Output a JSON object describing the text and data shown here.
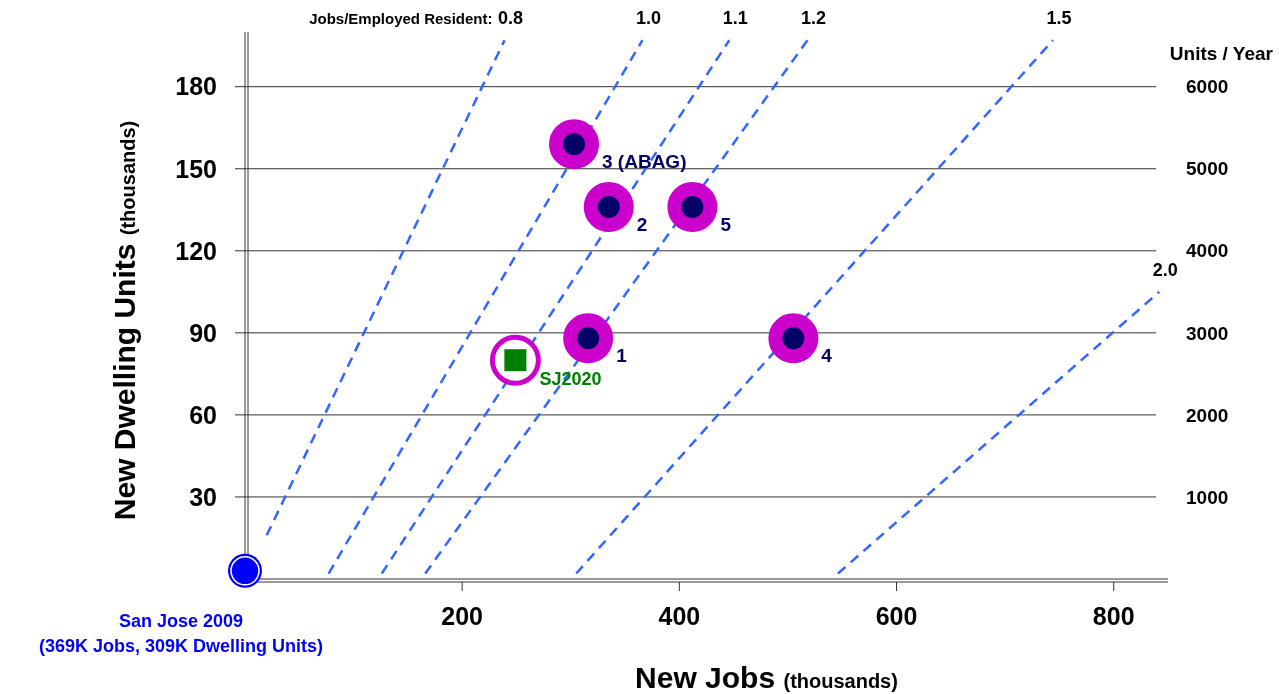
{
  "chart_data": {
    "type": "scatter",
    "xlabel": "New Jobs $_{(thousands)}$",
    "ylabel": "New Dwelling Units $_{(thousands)}$",
    "y2label": "Units / Year",
    "xlim": [
      0,
      850
    ],
    "xticks": [
      200,
      400,
      600,
      800
    ],
    "ylim": [
      0,
      200
    ],
    "yticks": [
      30,
      60,
      90,
      120,
      150,
      180
    ],
    "y2lim": [
      0,
      6667
    ],
    "y2ticks": [
      1000,
      2000,
      3000,
      4000,
      5000,
      6000
    ],
    "grid": "y",
    "annotations": [
      "Jobs/Employed Resident:",
      {
        "text": "3 (ABAG)",
        "x": 303,
        "y": 159
      },
      {
        "text": "2",
        "x": 335,
        "y": 136
      },
      {
        "text": "5",
        "x": 412,
        "y": 136
      },
      {
        "text": "1",
        "x": 316,
        "y": 88
      },
      {
        "text": "4",
        "x": 505,
        "y": 88
      }
    ],
    "series": [
      {
        "name": "0.8",
        "type": "line",
        "color": "#3366ff",
        "line_style": "dashed",
        "x": [
          20,
          239
        ],
        "values": [
          16,
          197
        ]
      },
      {
        "name": "1.0",
        "type": "line",
        "color": "#3366ff",
        "line_style": "dashed",
        "x": [
          77,
          366
        ],
        "values": [
          2,
          197
        ]
      },
      {
        "name": "1.1",
        "type": "line",
        "color": "#3366ff",
        "line_style": "dashed",
        "x": [
          126,
          446
        ],
        "values": [
          2,
          197
        ]
      },
      {
        "name": "1.2",
        "type": "line",
        "color": "#3366ff",
        "line_style": "dashed",
        "x": [
          166,
          518
        ],
        "values": [
          2,
          197
        ]
      },
      {
        "name": "1.5",
        "type": "line",
        "color": "#3366ff",
        "line_style": "dashed",
        "x": [
          305,
          744
        ],
        "values": [
          2,
          197
        ]
      },
      {
        "name": "2.0",
        "type": "line",
        "color": "#3366ff",
        "line_style": "dashed",
        "x": [
          546,
          842
        ],
        "values": [
          2,
          105
        ]
      },
      {
        "color": "#cc00cc",
        "marker": "circle",
        "x": [
          303,
          335,
          412,
          316,
          505
        ],
        "values": [
          159,
          136,
          136,
          88,
          88
        ]
      },
      {
        "name": "SJ2020",
        "color": "#008000",
        "marker": "square",
        "x": [
          249
        ],
        "values": [
          80
        ]
      },
      {
        "name": "San Jose 2009\n(369K Jobs, 309K Dwelling Units)",
        "color": "#0000ff",
        "marker": "circle",
        "x": [
          0
        ],
        "values": [
          3
        ]
      }
    ]
  }
}
